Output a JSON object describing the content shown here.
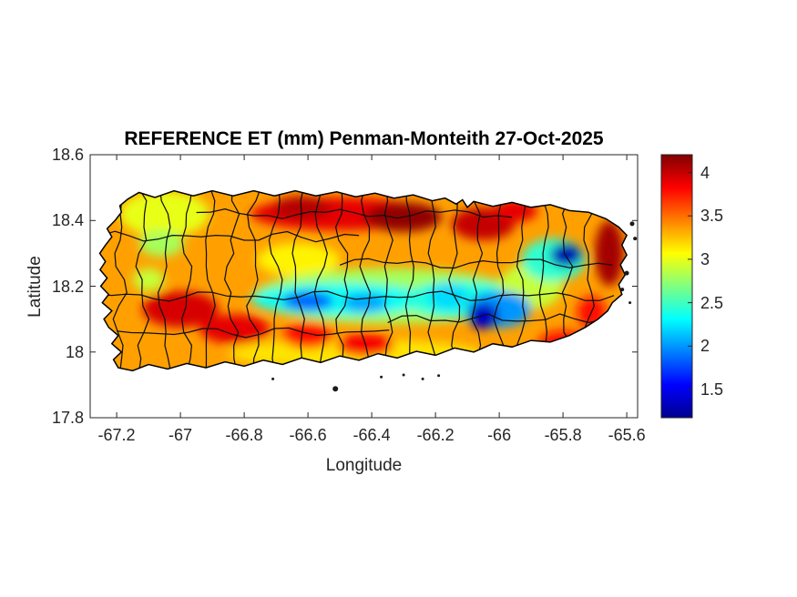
{
  "figure": {
    "title": "REFERENCE ET (mm) Penman-Monteith 27-Oct-2025",
    "xlabel": "Longitude",
    "ylabel": "Latitude"
  },
  "chart_data": {
    "type": "heatmap",
    "title": "REFERENCE ET (mm) Penman-Monteith 27-Oct-2025",
    "subtitle": "",
    "region": "Puerto Rico with municipality boundaries",
    "xlabel": "Longitude",
    "ylabel": "Latitude",
    "grid": false,
    "xlim": [
      -67.283,
      -65.566
    ],
    "ylim": [
      17.8,
      18.6
    ],
    "x_ticks": [
      {
        "v": -67.2,
        "label": "-67.2"
      },
      {
        "v": -67.0,
        "label": "-67"
      },
      {
        "v": -66.8,
        "label": "-66.8"
      },
      {
        "v": -66.6,
        "label": "-66.6"
      },
      {
        "v": -66.4,
        "label": "-66.4"
      },
      {
        "v": -66.2,
        "label": "-66.2"
      },
      {
        "v": -66.0,
        "label": "-66"
      },
      {
        "v": -65.8,
        "label": "-65.8"
      },
      {
        "v": -65.6,
        "label": "-65.6"
      }
    ],
    "y_ticks": [
      {
        "v": 18.6,
        "label": "18.6"
      },
      {
        "v": 18.4,
        "label": "18.4"
      },
      {
        "v": 18.2,
        "label": "18.2"
      },
      {
        "v": 18.0,
        "label": "18"
      },
      {
        "v": 17.8,
        "label": "17.8"
      }
    ],
    "colorbar": {
      "colormap": "jet",
      "min": 1.175,
      "max": 4.205,
      "ticks": [
        {
          "v": 1.5,
          "label": "1.5"
        },
        {
          "v": 2.0,
          "label": "2"
        },
        {
          "v": 2.5,
          "label": "2.5"
        },
        {
          "v": 3.0,
          "label": "3"
        },
        {
          "v": 3.5,
          "label": "3.5"
        },
        {
          "v": 4.0,
          "label": "4"
        }
      ],
      "stops": [
        {
          "t": 0.0,
          "c": "#00008F"
        },
        {
          "t": 0.125,
          "c": "#0000FF"
        },
        {
          "t": 0.375,
          "c": "#00FFFF"
        },
        {
          "t": 0.625,
          "c": "#FFFF00"
        },
        {
          "t": 0.875,
          "c": "#FF0000"
        },
        {
          "t": 1.0,
          "c": "#800000"
        }
      ]
    },
    "notable_values": [
      {
        "place": "north coast band",
        "value_mm": 3.9
      },
      {
        "place": "north-central coast maxima",
        "value_mm": 4.15
      },
      {
        "place": "east tip (Fajardo)",
        "value_mm": 4.1
      },
      {
        "place": "southwest (Mayaguez-Cabo Rojo)",
        "value_mm": 3.95
      },
      {
        "place": "south coast band",
        "value_mm": 3.8
      },
      {
        "place": "central cordillera band",
        "value_mm": 2.3
      },
      {
        "place": "Adjuntas blue core",
        "value_mm": 1.85
      },
      {
        "place": "Cayey dark-blue core",
        "value_mm": 1.35
      },
      {
        "place": "El Yunque dark-blue core",
        "value_mm": 1.3
      }
    ],
    "base_value_mm": 3.35,
    "field_blobs": [
      [
        -66.45,
        17.995,
        0.4,
        0.045,
        3.15
      ],
      [
        -67.05,
        18.42,
        0.14,
        0.07,
        3.0
      ],
      [
        -67.06,
        18.33,
        0.07,
        0.04,
        2.8
      ],
      [
        -66.63,
        18.28,
        0.13,
        0.05,
        3.1
      ],
      [
        -67.1,
        18.22,
        0.05,
        0.035,
        2.9
      ],
      [
        -66.35,
        18.17,
        0.42,
        0.085,
        2.8
      ],
      [
        -66.5,
        18.42,
        0.28,
        0.05,
        3.9
      ],
      [
        -66.3,
        18.41,
        0.12,
        0.045,
        4.15
      ],
      [
        -66.62,
        18.44,
        0.09,
        0.035,
        4.05
      ],
      [
        -66.05,
        18.39,
        0.1,
        0.05,
        4.0
      ],
      [
        -65.95,
        18.43,
        0.07,
        0.035,
        3.9
      ],
      [
        -65.655,
        18.3,
        0.045,
        0.1,
        4.1
      ],
      [
        -67.0,
        18.13,
        0.12,
        0.055,
        3.95
      ],
      [
        -66.83,
        18.07,
        0.11,
        0.045,
        3.9
      ],
      [
        -66.6,
        18.05,
        0.08,
        0.04,
        3.8
      ],
      [
        -66.42,
        18.02,
        0.09,
        0.035,
        3.85
      ],
      [
        -65.8,
        18.02,
        0.08,
        0.045,
        3.8
      ],
      [
        -65.71,
        18.12,
        0.045,
        0.05,
        3.8
      ],
      [
        -66.5,
        18.16,
        0.28,
        0.05,
        2.35
      ],
      [
        -66.12,
        18.16,
        0.18,
        0.055,
        2.4
      ],
      [
        -65.9,
        18.2,
        0.1,
        0.07,
        2.9
      ],
      [
        -66.6,
        18.155,
        0.08,
        0.03,
        1.85
      ],
      [
        -66.42,
        18.15,
        0.07,
        0.03,
        2.05
      ],
      [
        -66.16,
        18.17,
        0.06,
        0.04,
        2.2
      ],
      [
        -66.0,
        18.13,
        0.1,
        0.055,
        2.0
      ],
      [
        -66.05,
        18.11,
        0.05,
        0.04,
        1.35
      ],
      [
        -65.83,
        18.28,
        0.1,
        0.065,
        2.45
      ],
      [
        -65.79,
        18.295,
        0.05,
        0.035,
        1.3
      ]
    ],
    "coastline": [
      [
        -67.165,
        18.465
      ],
      [
        -67.13,
        18.485
      ],
      [
        -67.08,
        18.47
      ],
      [
        -67.02,
        18.49
      ],
      [
        -66.96,
        18.475
      ],
      [
        -66.9,
        18.49
      ],
      [
        -66.835,
        18.475
      ],
      [
        -66.77,
        18.49
      ],
      [
        -66.705,
        18.475
      ],
      [
        -66.64,
        18.49
      ],
      [
        -66.575,
        18.475
      ],
      [
        -66.51,
        18.487
      ],
      [
        -66.45,
        18.472
      ],
      [
        -66.39,
        18.483
      ],
      [
        -66.33,
        18.468
      ],
      [
        -66.27,
        18.478
      ],
      [
        -66.21,
        18.46
      ],
      [
        -66.17,
        18.468
      ],
      [
        -66.135,
        18.45
      ],
      [
        -66.115,
        18.463
      ],
      [
        -66.1,
        18.44
      ],
      [
        -66.08,
        18.458
      ],
      [
        -66.02,
        18.443
      ],
      [
        -65.96,
        18.455
      ],
      [
        -65.9,
        18.44
      ],
      [
        -65.84,
        18.448
      ],
      [
        -65.78,
        18.43
      ],
      [
        -65.72,
        18.425
      ],
      [
        -65.665,
        18.405
      ],
      [
        -65.625,
        18.38
      ],
      [
        -65.6,
        18.355
      ],
      [
        -65.615,
        18.325
      ],
      [
        -65.6,
        18.295
      ],
      [
        -65.62,
        18.265
      ],
      [
        -65.605,
        18.235
      ],
      [
        -65.625,
        18.205
      ],
      [
        -65.615,
        18.175
      ],
      [
        -65.645,
        18.15
      ],
      [
        -65.66,
        18.125
      ],
      [
        -65.69,
        18.1
      ],
      [
        -65.73,
        18.075
      ],
      [
        -65.78,
        18.05
      ],
      [
        -65.84,
        18.03
      ],
      [
        -65.9,
        18.035
      ],
      [
        -65.96,
        18.015
      ],
      [
        -66.02,
        18.025
      ],
      [
        -66.08,
        18.0
      ],
      [
        -66.14,
        18.012
      ],
      [
        -66.2,
        17.99
      ],
      [
        -66.26,
        18.002
      ],
      [
        -66.32,
        17.982
      ],
      [
        -66.38,
        17.995
      ],
      [
        -66.44,
        17.975
      ],
      [
        -66.5,
        17.988
      ],
      [
        -66.56,
        17.968
      ],
      [
        -66.62,
        17.982
      ],
      [
        -66.68,
        17.962
      ],
      [
        -66.74,
        17.975
      ],
      [
        -66.8,
        17.957
      ],
      [
        -66.86,
        17.97
      ],
      [
        -66.92,
        17.952
      ],
      [
        -66.98,
        17.965
      ],
      [
        -67.04,
        17.948
      ],
      [
        -67.1,
        17.962
      ],
      [
        -67.15,
        17.943
      ],
      [
        -67.195,
        17.952
      ],
      [
        -67.21,
        17.977
      ],
      [
        -67.185,
        18.0
      ],
      [
        -67.215,
        18.025
      ],
      [
        -67.195,
        18.05
      ],
      [
        -67.225,
        18.075
      ],
      [
        -67.24,
        18.1
      ],
      [
        -67.215,
        18.125
      ],
      [
        -67.245,
        18.15
      ],
      [
        -67.225,
        18.175
      ],
      [
        -67.25,
        18.2
      ],
      [
        -67.23,
        18.225
      ],
      [
        -67.252,
        18.25
      ],
      [
        -67.235,
        18.275
      ],
      [
        -67.253,
        18.3
      ],
      [
        -67.235,
        18.325
      ],
      [
        -67.215,
        18.35
      ],
      [
        -67.23,
        18.375
      ],
      [
        -67.205,
        18.4
      ],
      [
        -67.185,
        18.425
      ],
      [
        -67.19,
        18.445
      ]
    ],
    "islets": [
      [
        -66.514,
        17.888,
        3
      ],
      [
        -66.71,
        17.918,
        1.5
      ],
      [
        -66.37,
        17.924,
        1.5
      ],
      [
        -66.3,
        17.93,
        1.5
      ],
      [
        -66.24,
        17.918,
        1.5
      ],
      [
        -66.19,
        17.928,
        1.5
      ],
      [
        -65.583,
        18.39,
        2.5
      ],
      [
        -65.574,
        18.345,
        2
      ],
      [
        -65.6,
        18.24,
        2.5
      ],
      [
        -65.614,
        18.19,
        2
      ],
      [
        -65.59,
        18.15,
        1.5
      ]
    ],
    "boundaries": {
      "vertical_lons": [
        -67.19,
        -67.12,
        -67.05,
        -66.98,
        -66.91,
        -66.84,
        -66.77,
        -66.7,
        -66.63,
        -66.56,
        -66.49,
        -66.42,
        -66.35,
        -66.28,
        -66.21,
        -66.14,
        -66.07,
        -66.0,
        -65.93,
        -65.86,
        -65.79,
        -65.72
      ],
      "horizontal_segments": [
        {
          "lat": 18.35,
          "lon0": -67.25,
          "lon1": -66.4
        },
        {
          "lat": 18.27,
          "lon0": -66.5,
          "lon1": -65.62
        },
        {
          "lat": 18.17,
          "lon0": -67.26,
          "lon1": -65.63
        },
        {
          "lat": 18.06,
          "lon0": -67.2,
          "lon1": -66.3
        },
        {
          "lat": 18.1,
          "lon0": -66.35,
          "lon1": -65.66
        },
        {
          "lat": 18.42,
          "lon0": -66.95,
          "lon1": -65.95
        }
      ]
    }
  }
}
